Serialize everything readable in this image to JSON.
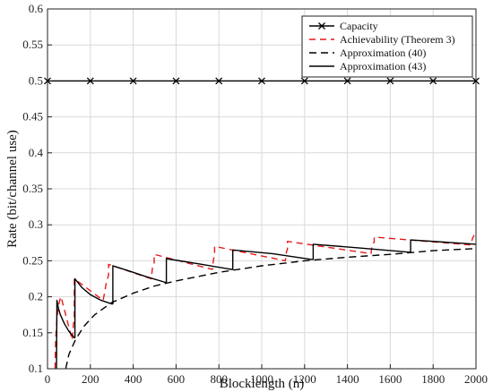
{
  "chart_data": {
    "type": "line",
    "title": "",
    "xlabel": "Blocklength (n)",
    "ylabel": "Rate (bit/channel use)",
    "xlim": [
      0,
      2000
    ],
    "ylim": [
      0.1,
      0.6
    ],
    "xticks": [
      0,
      200,
      400,
      600,
      800,
      1000,
      1200,
      1400,
      1600,
      1800,
      2000
    ],
    "yticks": [
      0.1,
      0.15,
      0.2,
      0.25,
      0.3,
      0.35,
      0.4,
      0.45,
      0.5,
      0.55,
      0.6
    ],
    "grid": true,
    "legend_position": "top-right",
    "series": [
      {
        "name": "Capacity",
        "style": "solid-x-marker",
        "color": "#000000",
        "x": [
          0,
          200,
          400,
          600,
          800,
          1000,
          1200,
          1400,
          1600,
          1800,
          2000
        ],
        "y": [
          0.5,
          0.5,
          0.5,
          0.5,
          0.5,
          0.5,
          0.5,
          0.5,
          0.5,
          0.5,
          0.5
        ]
      },
      {
        "name": "Achievability (Theorem 3)",
        "style": "dashed",
        "color": "#e41a1c",
        "x": [
          35,
          38,
          43,
          48,
          53,
          58,
          63,
          63,
          115,
          122,
          125,
          125,
          260,
          275,
          285,
          285,
          484,
          490,
          498,
          498,
          770,
          775,
          780,
          780,
          1110,
          1115,
          1120,
          1120,
          1510,
          1515,
          1525,
          1525,
          1975,
          1985,
          2000
        ],
        "y": [
          0.1,
          0.14,
          0.165,
          0.18,
          0.19,
          0.196,
          0.2,
          0.2,
          0.14,
          0.165,
          0.172,
          0.225,
          0.195,
          0.22,
          0.23,
          0.245,
          0.225,
          0.24,
          0.245,
          0.259,
          0.238,
          0.252,
          0.257,
          0.27,
          0.25,
          0.262,
          0.266,
          0.277,
          0.26,
          0.272,
          0.276,
          0.283,
          0.272,
          0.282,
          0.29
        ]
      },
      {
        "name": "Approximation (40)",
        "style": "dashed",
        "color": "#000000",
        "x": [
          85,
          100,
          130,
          170,
          220,
          300,
          400,
          500,
          600,
          800,
          1000,
          1200,
          1400,
          1600,
          1800,
          2000
        ],
        "y": [
          0.1,
          0.12,
          0.14,
          0.159,
          0.175,
          0.192,
          0.205,
          0.215,
          0.222,
          0.234,
          0.243,
          0.25,
          0.255,
          0.259,
          0.264,
          0.267
        ]
      },
      {
        "name": "Approximation (43)",
        "style": "solid",
        "color": "#000000",
        "x": [
          42,
          44,
          50,
          60,
          80,
          100,
          125,
          128,
          128,
          160,
          200,
          250,
          300,
          305,
          305,
          380,
          460,
          550,
          555,
          555,
          700,
          860,
          865,
          865,
          1050,
          1230,
          1240,
          1240,
          1450,
          1690,
          1695,
          1695,
          1850,
          2000
        ],
        "y": [
          0.1,
          0.195,
          0.185,
          0.175,
          0.162,
          0.152,
          0.143,
          0.143,
          0.225,
          0.213,
          0.203,
          0.195,
          0.19,
          0.19,
          0.243,
          0.236,
          0.228,
          0.22,
          0.22,
          0.253,
          0.246,
          0.238,
          0.238,
          0.265,
          0.26,
          0.252,
          0.252,
          0.273,
          0.268,
          0.262,
          0.262,
          0.279,
          0.276,
          0.273
        ]
      }
    ]
  }
}
